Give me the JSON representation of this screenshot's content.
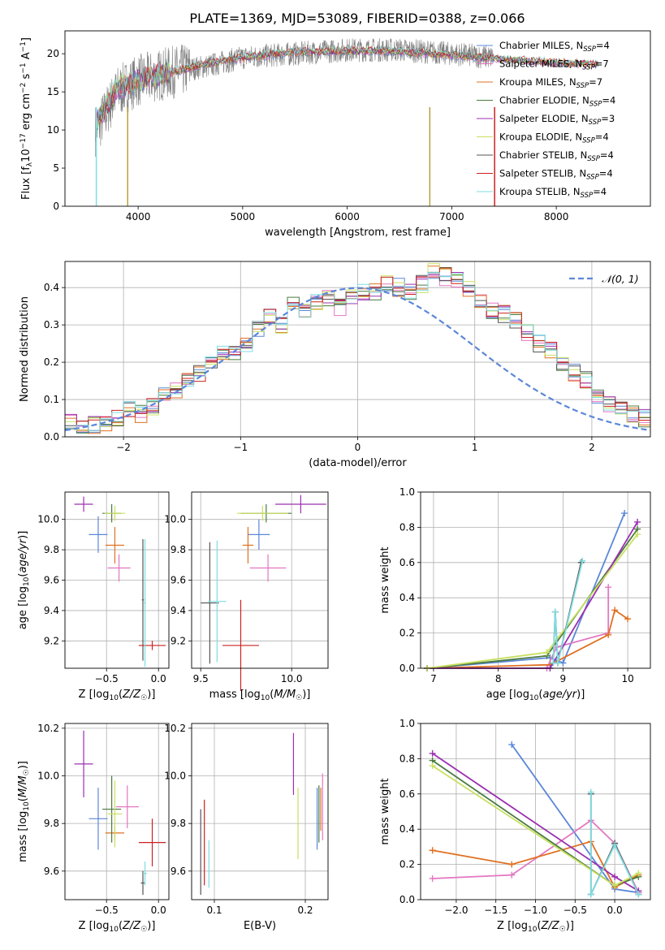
{
  "title": "PLATE=1369, MJD=53089, FIBERID=0388, z=0.066",
  "colors": {
    "chabrier_miles": "#5b87d8",
    "salpeter_miles": "#e377c2",
    "kroupa_miles": "#e07020",
    "chabrier_elodie": "#4a7a40",
    "salpeter_elodie": "#9b30b0",
    "kroupa_elodie": "#c8e060",
    "chabrier_stelib": "#555555",
    "salpeter_stelib": "#cc2020",
    "kroupa_stelib": "#7fdde0",
    "normal_curve": "#5b87d8"
  },
  "chart_data": [
    {
      "type": "line",
      "xlabel": "wavelength [Angstrom, rest frame]",
      "ylabel": "Flux [f_λ 10^-17 erg cm^-2 s^-1 A^-1]",
      "xlim": [
        3300,
        8900
      ],
      "ylim": [
        0,
        23
      ],
      "xticks": [
        4000,
        5000,
        6000,
        7000,
        8000
      ],
      "yticks": [
        0,
        5,
        10,
        15,
        20
      ],
      "grid": false,
      "legend_position": "right",
      "legend": [
        {
          "label": "Chabrier MILES, N_SSP=4",
          "color": "#5b87d8"
        },
        {
          "label": "Salpeter MILES, N_SSP=7",
          "color": "#e377c2"
        },
        {
          "label": "Kroupa MILES, N_SSP=7",
          "color": "#e07020"
        },
        {
          "label": "Chabrier ELODIE, N_SSP=4",
          "color": "#4a7a40"
        },
        {
          "label": "Salpeter ELODIE, N_SSP=3",
          "color": "#9b30b0"
        },
        {
          "label": "Kroupa ELODIE, N_SSP=4",
          "color": "#c8e060"
        },
        {
          "label": "Chabrier STELIB, N_SSP=4",
          "color": "#555555"
        },
        {
          "label": "Salpeter STELIB, N_SSP=4",
          "color": "#cc2020"
        },
        {
          "label": "Kroupa STELIB, N_SSP=4",
          "color": "#7fdde0"
        }
      ],
      "model_trend": {
        "x": [
          3600,
          3800,
          4000,
          4300,
          4700,
          5000,
          5500,
          6000,
          6500,
          7000,
          7400,
          8000,
          8500
        ],
        "y": [
          11,
          15.5,
          16.5,
          17.5,
          18.8,
          19.5,
          20.2,
          20.4,
          20.3,
          19.8,
          19.4,
          18.8,
          18.6
        ]
      },
      "data_trend": {
        "x": [
          3600,
          3800,
          4000,
          4300,
          4700,
          5000,
          5500,
          6000,
          6500,
          7000,
          7400
        ],
        "y": [
          10,
          15,
          16.5,
          17.5,
          18.5,
          19.5,
          20,
          20.5,
          20.5,
          20,
          19.5
        ]
      }
    },
    {
      "type": "histogram",
      "xlabel": "(data-model)/error",
      "ylabel": "Normed distribution",
      "xlim": [
        -2.5,
        2.5
      ],
      "ylim": [
        0,
        0.47
      ],
      "xticks": [
        -2,
        -1,
        0,
        1,
        2
      ],
      "yticks": [
        0.0,
        0.1,
        0.2,
        0.3,
        0.4
      ],
      "grid": true,
      "legend_position": "top-right",
      "legend": [
        {
          "label": "𝒩(0, 1)",
          "color": "#5b87d8"
        }
      ],
      "bin_width": 0.1,
      "hist_values": [
        0.04,
        0.02,
        0.03,
        0.03,
        0.05,
        0.07,
        0.06,
        0.08,
        0.11,
        0.12,
        0.15,
        0.17,
        0.2,
        0.23,
        0.22,
        0.25,
        0.29,
        0.32,
        0.3,
        0.35,
        0.34,
        0.36,
        0.37,
        0.35,
        0.38,
        0.39,
        0.39,
        0.41,
        0.4,
        0.39,
        0.41,
        0.44,
        0.43,
        0.42,
        0.4,
        0.37,
        0.34,
        0.33,
        0.31,
        0.28,
        0.25,
        0.23,
        0.2,
        0.17,
        0.15,
        0.11,
        0.09,
        0.08,
        0.06,
        0.05
      ]
    },
    {
      "type": "errorbar",
      "xlabel": "Z [log10(Z/Z☉)]",
      "ylabel": "age [log10(age/yr)]",
      "xlim": [
        -0.9,
        0.1
      ],
      "ylim": [
        9.02,
        10.18
      ],
      "xticks": [
        -0.5,
        0.0
      ],
      "yticks": [
        9.2,
        9.4,
        9.6,
        9.8,
        10.0
      ],
      "grid": true,
      "points": [
        {
          "x": -0.58,
          "xerr": 0.09,
          "y": 9.9,
          "yerr": 0.12,
          "color": "#5b87d8"
        },
        {
          "x": -0.38,
          "xerr": 0.11,
          "y": 9.68,
          "yerr": 0.09,
          "color": "#e377c2"
        },
        {
          "x": -0.42,
          "xerr": 0.09,
          "y": 9.83,
          "yerr": 0.12,
          "color": "#e07020"
        },
        {
          "x": -0.45,
          "xerr": 0.09,
          "y": 10.04,
          "yerr": 0.06,
          "color": "#4a7a40"
        },
        {
          "x": -0.72,
          "xerr": 0.09,
          "y": 10.1,
          "yerr": 0.05,
          "color": "#9b30b0"
        },
        {
          "x": -0.42,
          "xerr": 0.1,
          "y": 10.04,
          "yerr": 0.05,
          "color": "#c8e060"
        },
        {
          "x": -0.15,
          "xerr": 0.01,
          "y": 9.47,
          "yerr": 0.4,
          "color": "#555555"
        },
        {
          "x": -0.06,
          "xerr": 0.13,
          "y": 9.17,
          "yerr": 0.03,
          "color": "#cc2020"
        },
        {
          "x": -0.13,
          "xerr": 0.01,
          "y": 9.45,
          "yerr": 0.42,
          "color": "#7fdde0"
        }
      ]
    },
    {
      "type": "errorbar",
      "xlabel": "mass [log10(M/M☉)]",
      "ylabel": "",
      "xlim": [
        9.45,
        10.2
      ],
      "ylim": [
        9.02,
        10.18
      ],
      "xticks": [
        9.5,
        10.0
      ],
      "yticks": [
        9.2,
        9.4,
        9.6,
        9.8,
        10.0
      ],
      "grid": true,
      "points": [
        {
          "x": 9.82,
          "xerr": 0.06,
          "y": 9.9,
          "yerr": 0.1,
          "color": "#5b87d8"
        },
        {
          "x": 9.87,
          "xerr": 0.1,
          "y": 9.68,
          "yerr": 0.09,
          "color": "#e377c2"
        },
        {
          "x": 9.76,
          "xerr": 0.03,
          "y": 9.83,
          "yerr": 0.12,
          "color": "#e07020"
        },
        {
          "x": 9.86,
          "xerr": 0.14,
          "y": 10.04,
          "yerr": 0.06,
          "color": "#4a7a40"
        },
        {
          "x": 10.05,
          "xerr": 0.14,
          "y": 10.1,
          "yerr": 0.06,
          "color": "#9b30b0"
        },
        {
          "x": 9.84,
          "xerr": 0.14,
          "y": 10.04,
          "yerr": 0.05,
          "color": "#c8e060"
        },
        {
          "x": 9.55,
          "xerr": 0.05,
          "y": 9.45,
          "yerr": 0.4,
          "color": "#555555"
        },
        {
          "x": 9.72,
          "xerr": 0.1,
          "y": 9.17,
          "yerr": 0.3,
          "color": "#cc2020"
        },
        {
          "x": 9.59,
          "xerr": 0.05,
          "y": 9.46,
          "yerr": 0.4,
          "color": "#7fdde0"
        }
      ]
    },
    {
      "type": "line",
      "xlabel": "age [log10(age/yr)]",
      "ylabel": "mass weight",
      "xlim": [
        6.8,
        10.35
      ],
      "ylim": [
        0,
        1.0
      ],
      "xticks": [
        7,
        8,
        9,
        10
      ],
      "yticks": [
        0.0,
        0.2,
        0.4,
        0.6,
        0.8,
        1.0
      ],
      "grid": true,
      "series": [
        {
          "color": "#5b87d8",
          "points": [
            [
              6.9,
              0.0
            ],
            [
              8.8,
              0.06
            ],
            [
              9.0,
              0.03
            ],
            [
              9.95,
              0.88
            ]
          ]
        },
        {
          "color": "#e377c2",
          "points": [
            [
              6.9,
              0.0
            ],
            [
              8.75,
              0.0
            ],
            [
              8.9,
              0.12
            ],
            [
              9.7,
              0.2
            ],
            [
              9.7,
              0.46
            ]
          ]
        },
        {
          "color": "#e07020",
          "points": [
            [
              6.9,
              0.0
            ],
            [
              8.8,
              0.02
            ],
            [
              9.7,
              0.19
            ],
            [
              9.8,
              0.33
            ],
            [
              10.0,
              0.28
            ]
          ]
        },
        {
          "color": "#4a7a40",
          "points": [
            [
              6.9,
              0.0
            ],
            [
              8.75,
              0.07
            ],
            [
              10.15,
              0.79
            ]
          ]
        },
        {
          "color": "#9b30b0",
          "points": [
            [
              6.9,
              0.0
            ],
            [
              8.8,
              0.0
            ],
            [
              10.15,
              0.83
            ]
          ]
        },
        {
          "color": "#c8e060",
          "points": [
            [
              6.9,
              0.0
            ],
            [
              8.75,
              0.09
            ],
            [
              10.15,
              0.76
            ]
          ]
        },
        {
          "color": "#555555",
          "points": [
            [
              8.85,
              0.03
            ],
            [
              8.88,
              0.32
            ],
            [
              8.92,
              0.03
            ],
            [
              9.28,
              0.6
            ]
          ]
        },
        {
          "color": "#7fdde0",
          "points": [
            [
              8.85,
              0.03
            ],
            [
              8.88,
              0.32
            ],
            [
              8.92,
              0.03
            ],
            [
              9.3,
              0.61
            ]
          ]
        }
      ]
    },
    {
      "type": "errorbar",
      "xlabel": "Z [log10(Z/Z☉)]",
      "ylabel": "mass [log10(M/M☉)]",
      "xlim": [
        -0.9,
        0.1
      ],
      "ylim": [
        9.48,
        10.22
      ],
      "xticks": [
        -0.5,
        0.0
      ],
      "yticks": [
        9.6,
        9.8,
        10.0,
        10.2
      ],
      "grid": true,
      "points": [
        {
          "x": -0.58,
          "xerr": 0.09,
          "y": 9.82,
          "yerr": 0.13,
          "color": "#5b87d8"
        },
        {
          "x": -0.3,
          "xerr": 0.11,
          "y": 9.87,
          "yerr": 0.09,
          "color": "#e377c2"
        },
        {
          "x": -0.42,
          "xerr": 0.09,
          "y": 9.76,
          "yerr": 0.03,
          "color": "#e07020"
        },
        {
          "x": -0.45,
          "xerr": 0.09,
          "y": 9.86,
          "yerr": 0.14,
          "color": "#4a7a40"
        },
        {
          "x": -0.72,
          "xerr": 0.09,
          "y": 10.05,
          "yerr": 0.14,
          "color": "#9b30b0"
        },
        {
          "x": -0.42,
          "xerr": 0.07,
          "y": 9.84,
          "yerr": 0.14,
          "color": "#c8e060"
        },
        {
          "x": -0.15,
          "xerr": 0.02,
          "y": 9.55,
          "yerr": 0.05,
          "color": "#555555"
        },
        {
          "x": -0.06,
          "xerr": 0.13,
          "y": 9.72,
          "yerr": 0.1,
          "color": "#cc2020"
        },
        {
          "x": -0.13,
          "xerr": 0.02,
          "y": 9.59,
          "yerr": 0.05,
          "color": "#7fdde0"
        }
      ]
    },
    {
      "type": "errorbar",
      "xlabel": "E(B-V)",
      "ylabel": "",
      "xlim": [
        0.075,
        0.225
      ],
      "ylim": [
        9.48,
        10.22
      ],
      "xticks": [
        0.1,
        0.2
      ],
      "yticks": [
        9.6,
        9.8,
        10.0,
        10.2
      ],
      "grid": true,
      "points": [
        {
          "x": 0.213,
          "xerr": 0.0,
          "y": 9.82,
          "yerr": 0.13,
          "color": "#5b87d8"
        },
        {
          "x": 0.219,
          "xerr": 0.0,
          "y": 9.87,
          "yerr": 0.14,
          "color": "#e377c2"
        },
        {
          "x": 0.217,
          "xerr": 0.0,
          "y": 9.86,
          "yerr": 0.09,
          "color": "#e07020"
        },
        {
          "x": 0.215,
          "xerr": 0.0,
          "y": 9.84,
          "yerr": 0.12,
          "color": "#4a7a40"
        },
        {
          "x": 0.187,
          "xerr": 0.0,
          "y": 10.05,
          "yerr": 0.13,
          "color": "#9b30b0"
        },
        {
          "x": 0.192,
          "xerr": 0.0,
          "y": 9.8,
          "yerr": 0.15,
          "color": "#c8e060"
        },
        {
          "x": 0.085,
          "xerr": 0.0,
          "y": 9.68,
          "yerr": 0.18,
          "color": "#555555"
        },
        {
          "x": 0.089,
          "xerr": 0.0,
          "y": 9.72,
          "yerr": 0.18,
          "color": "#cc2020"
        },
        {
          "x": 0.094,
          "xerr": 0.0,
          "y": 9.63,
          "yerr": 0.1,
          "color": "#7fdde0"
        }
      ]
    },
    {
      "type": "line",
      "xlabel": "Z [log10(Z/Z☉)]",
      "ylabel": "mass weight",
      "xlim": [
        -2.45,
        0.45
      ],
      "ylim": [
        0,
        1.0
      ],
      "xticks": [
        -2.0,
        -1.5,
        -1.0,
        -0.5,
        0.0
      ],
      "yticks": [
        0.0,
        0.2,
        0.4,
        0.6,
        0.8,
        1.0
      ],
      "grid": true,
      "series": [
        {
          "color": "#5b87d8",
          "points": [
            [
              -1.3,
              0.88
            ],
            [
              0.0,
              0.06
            ],
            [
              0.3,
              0.04
            ]
          ]
        },
        {
          "color": "#e377c2",
          "points": [
            [
              -2.3,
              0.12
            ],
            [
              -1.3,
              0.14
            ],
            [
              -0.3,
              0.45
            ],
            [
              0.0,
              0.32
            ],
            [
              0.3,
              0.04
            ]
          ]
        },
        {
          "color": "#e07020",
          "points": [
            [
              -2.3,
              0.28
            ],
            [
              -1.3,
              0.2
            ],
            [
              -0.3,
              0.33
            ],
            [
              0.0,
              0.07
            ],
            [
              0.3,
              0.14
            ]
          ]
        },
        {
          "color": "#4a7a40",
          "points": [
            [
              -2.3,
              0.79
            ],
            [
              0.0,
              0.08
            ],
            [
              0.3,
              0.13
            ]
          ]
        },
        {
          "color": "#9b30b0",
          "points": [
            [
              -2.3,
              0.83
            ],
            [
              0.0,
              0.13
            ],
            [
              0.3,
              0.05
            ]
          ]
        },
        {
          "color": "#c8e060",
          "points": [
            [
              -2.3,
              0.76
            ],
            [
              0.0,
              0.08
            ],
            [
              0.3,
              0.15
            ]
          ]
        },
        {
          "color": "#555555",
          "points": [
            [
              -0.3,
              0.6
            ],
            [
              -0.3,
              0.03
            ],
            [
              0.0,
              0.32
            ],
            [
              0.3,
              0.03
            ]
          ]
        },
        {
          "color": "#7fdde0",
          "points": [
            [
              -0.3,
              0.61
            ],
            [
              -0.3,
              0.03
            ],
            [
              0.0,
              0.31
            ],
            [
              0.3,
              0.03
            ]
          ]
        }
      ]
    }
  ]
}
